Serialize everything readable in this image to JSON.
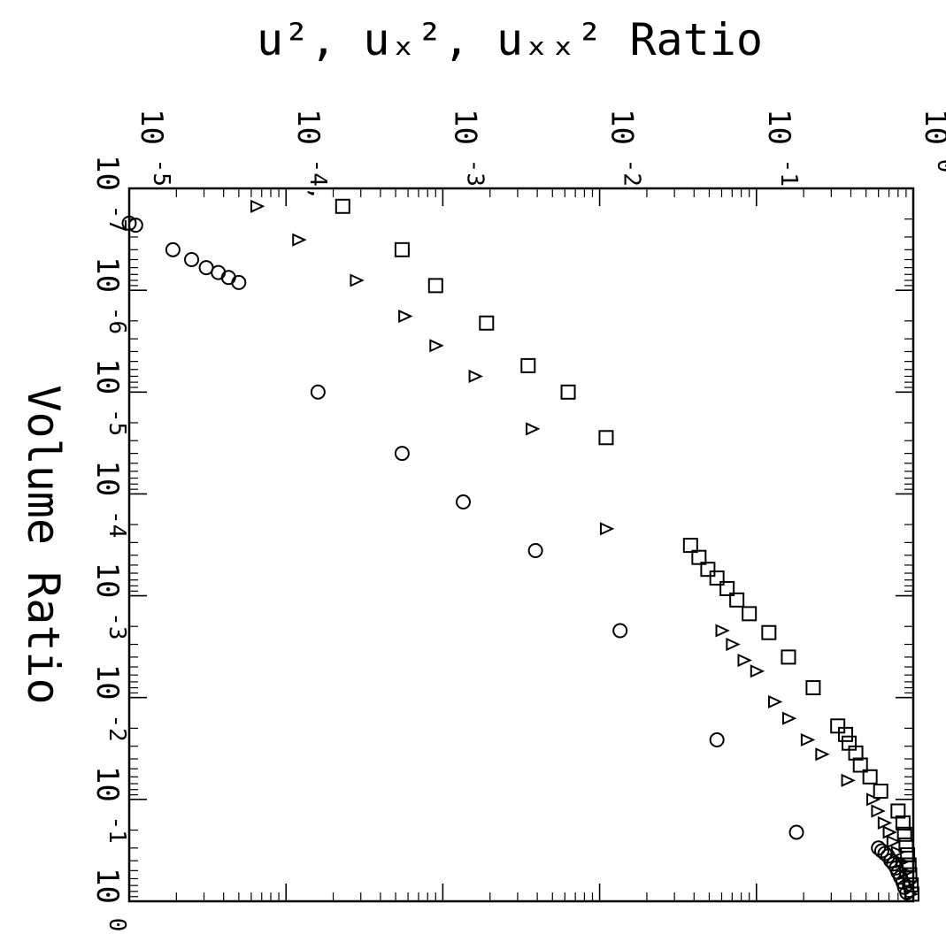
{
  "chart_data": {
    "type": "scatter",
    "orientation": "rotated 90° clockwise (x axis runs top to bottom, y axis runs left to right)",
    "title": "",
    "xlabel": "Volume Ratio",
    "ylabel": "u², uₓ², uₓₓ² Ratio",
    "x_scale": "log",
    "y_scale": "log",
    "xlim": [
      1e-07,
      1
    ],
    "ylim": [
      1e-05,
      1
    ],
    "x_ticks": [
      {
        "value": 1e-07,
        "base": "10",
        "exp": "-7"
      },
      {
        "value": 1e-06,
        "base": "10",
        "exp": "-6"
      },
      {
        "value": 1e-05,
        "base": "10",
        "exp": "-5"
      },
      {
        "value": 0.0001,
        "base": "10",
        "exp": "-4"
      },
      {
        "value": 0.001,
        "base": "10",
        "exp": "-3"
      },
      {
        "value": 0.01,
        "base": "10",
        "exp": "-2"
      },
      {
        "value": 0.1,
        "base": "10",
        "exp": "-1"
      },
      {
        "value": 1,
        "base": "10",
        "exp": "0"
      }
    ],
    "y_ticks": [
      {
        "value": 1e-05,
        "base": "10",
        "exp": "-5"
      },
      {
        "value": 0.0001,
        "base": "10",
        "exp": "-4,"
      },
      {
        "value": 0.001,
        "base": "10",
        "exp": "-3"
      },
      {
        "value": 0.01,
        "base": "10",
        "exp": "-2"
      },
      {
        "value": 0.1,
        "base": "10",
        "exp": "-1"
      },
      {
        "value": 1,
        "base": "10",
        "exp": "0"
      }
    ],
    "grid": false,
    "legend": "none",
    "series": [
      {
        "marker": "circle",
        "points": [
          [
            2.2e-07,
            1e-05
          ],
          [
            2.3e-07,
            1.1e-05
          ],
          [
            4e-07,
            1.9e-05
          ],
          [
            5e-07,
            2.5e-05
          ],
          [
            6e-07,
            3.1e-05
          ],
          [
            6.7e-07,
            3.7e-05
          ],
          [
            7.5e-07,
            4.3e-05
          ],
          [
            8.4e-07,
            5e-05
          ],
          [
            1e-05,
            0.00016
          ],
          [
            4e-05,
            0.00055
          ],
          [
            0.00012,
            0.00135
          ],
          [
            0.00036,
            0.0039
          ],
          [
            0.0022,
            0.0135
          ],
          [
            0.026,
            0.056
          ],
          [
            0.21,
            0.18
          ],
          [
            0.3,
            0.6
          ],
          [
            0.32,
            0.63
          ],
          [
            0.34,
            0.66
          ],
          [
            0.36,
            0.69
          ],
          [
            0.4,
            0.72
          ],
          [
            0.43,
            0.75
          ],
          [
            0.47,
            0.78
          ],
          [
            0.52,
            0.8
          ],
          [
            0.58,
            0.83
          ],
          [
            0.65,
            0.86
          ],
          [
            0.73,
            0.88
          ],
          [
            0.82,
            0.91
          ]
        ]
      },
      {
        "marker": "triangle",
        "points": [
          [
            1.5e-07,
            6.5e-05
          ],
          [
            3.2e-07,
            0.00012
          ],
          [
            8e-07,
            0.00028
          ],
          [
            1.8e-06,
            0.00057
          ],
          [
            3.5e-06,
            0.0009
          ],
          [
            7e-06,
            0.0016
          ],
          [
            2.3e-05,
            0.0037
          ],
          [
            0.00022,
            0.011
          ],
          [
            0.0022,
            0.06
          ],
          [
            0.003,
            0.07
          ],
          [
            0.0043,
            0.083
          ],
          [
            0.0055,
            0.1
          ],
          [
            0.011,
            0.13
          ],
          [
            0.016,
            0.16
          ],
          [
            0.026,
            0.21
          ],
          [
            0.036,
            0.26
          ],
          [
            0.065,
            0.38
          ],
          [
            0.1,
            0.55
          ],
          [
            0.13,
            0.59
          ],
          [
            0.17,
            0.65
          ],
          [
            0.21,
            0.7
          ],
          [
            0.26,
            0.74
          ],
          [
            0.33,
            0.79
          ],
          [
            0.41,
            0.84
          ],
          [
            0.52,
            0.89
          ],
          [
            0.66,
            0.93
          ],
          [
            0.85,
            0.96
          ]
        ]
      },
      {
        "marker": "square",
        "points": [
          [
            1.5e-07,
            0.00023
          ],
          [
            4e-07,
            0.00055
          ],
          [
            9e-07,
            0.0009
          ],
          [
            2.1e-06,
            0.0019
          ],
          [
            5.5e-06,
            0.0035
          ],
          [
            1e-05,
            0.0063
          ],
          [
            2.8e-05,
            0.011
          ],
          [
            0.00032,
            0.038
          ],
          [
            0.00042,
            0.043
          ],
          [
            0.00055,
            0.049
          ],
          [
            0.00067,
            0.056
          ],
          [
            0.00085,
            0.065
          ],
          [
            0.0011,
            0.075
          ],
          [
            0.0015,
            0.09
          ],
          [
            0.0023,
            0.12
          ],
          [
            0.004,
            0.16
          ],
          [
            0.008,
            0.23
          ],
          [
            0.019,
            0.33
          ],
          [
            0.023,
            0.37
          ],
          [
            0.028,
            0.39
          ],
          [
            0.035,
            0.43
          ],
          [
            0.046,
            0.46
          ],
          [
            0.06,
            0.53
          ],
          [
            0.083,
            0.62
          ],
          [
            0.13,
            0.8
          ],
          [
            0.17,
            0.86
          ],
          [
            0.22,
            0.88
          ],
          [
            0.28,
            0.9
          ],
          [
            0.35,
            0.92
          ],
          [
            0.44,
            0.94
          ],
          [
            0.55,
            0.95
          ],
          [
            0.69,
            0.97
          ],
          [
            0.85,
            0.98
          ]
        ]
      }
    ]
  }
}
